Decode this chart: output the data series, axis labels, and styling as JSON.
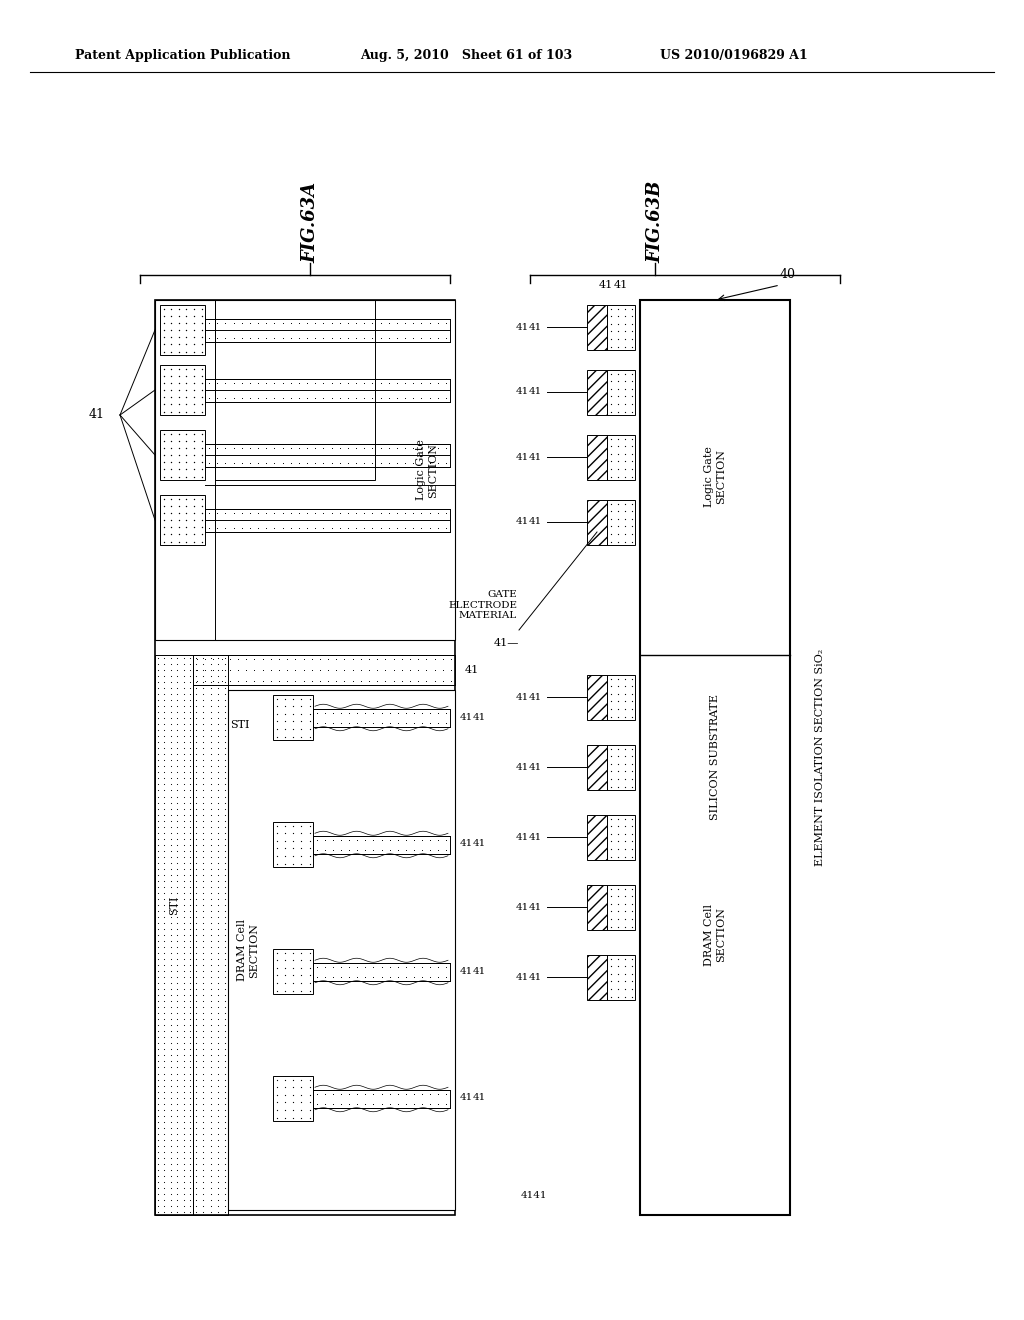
{
  "bg_color": "#ffffff",
  "header_left": "Patent Application Publication",
  "header_mid": "Aug. 5, 2010   Sheet 61 of 103",
  "header_right": "US 2010/0196829 A1",
  "fig_a_label": "FIG.63A",
  "fig_b_label": "FIG.63B",
  "label_41": "41",
  "label_40": "40",
  "label_sti": "STI",
  "label_logic_gate": "Logic Gate\nSECTION",
  "label_dram_cell": "DRAM Cell\nSECTION",
  "label_gate_electrode": "GATE\nELECTRODE\nMATERIAL",
  "label_silicon_substrate": "SILICON SUBSTRATE",
  "label_element_isolation": "ELEMENT ISOLATION SECTION SiO₂"
}
